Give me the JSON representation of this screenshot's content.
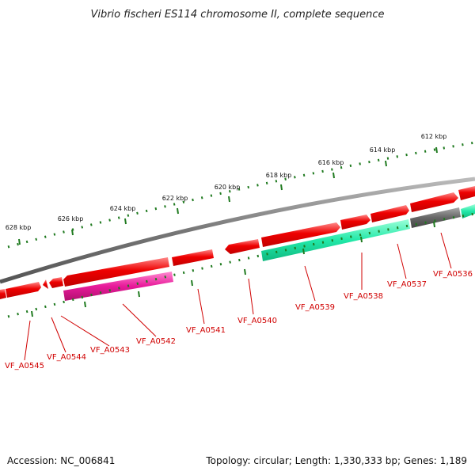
{
  "title": "Vibrio fischeri ES114 chromosome II, complete sequence",
  "footer": {
    "accession": "Accession: NC_006841",
    "topology": "Topology: circular; Length: 1,330,333 bp; Genes: 1,189"
  },
  "scale_labels": [
    "612 kbp",
    "614 kbp",
    "616 kbp",
    "618 kbp",
    "620 kbp",
    "622 kbp",
    "624 kbp",
    "626 kbp",
    "628 kbp"
  ],
  "gene_labels": [
    "VF_A0536",
    "VF_A0537",
    "VF_A0538",
    "VF_A0539",
    "VF_A0540",
    "VF_A0541",
    "VF_A0542",
    "VF_A0543",
    "VF_A0544",
    "VF_A0545"
  ],
  "colors": {
    "forward_gene": "#ee0000",
    "reverse_gene_teal": "#22e8a8",
    "reverse_gene_magenta": "#e81a9a",
    "reverse_gene_gray": "#666666",
    "backbone": "#777777",
    "tick_major": "#1f7a1f",
    "label": "#d00000"
  }
}
